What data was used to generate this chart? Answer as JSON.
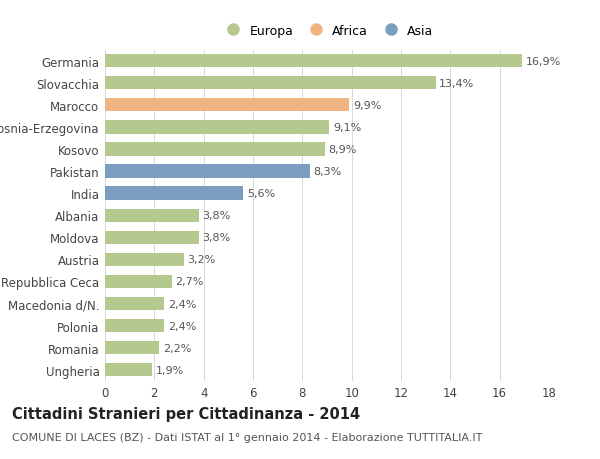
{
  "countries": [
    "Ungheria",
    "Romania",
    "Polonia",
    "Macedonia d/N.",
    "Repubblica Ceca",
    "Austria",
    "Moldova",
    "Albania",
    "India",
    "Pakistan",
    "Kosovo",
    "Bosnia-Erzegovina",
    "Marocco",
    "Slovacchia",
    "Germania"
  ],
  "values": [
    1.9,
    2.2,
    2.4,
    2.4,
    2.7,
    3.2,
    3.8,
    3.8,
    5.6,
    8.3,
    8.9,
    9.1,
    9.9,
    13.4,
    16.9
  ],
  "continents": [
    "Europa",
    "Europa",
    "Europa",
    "Europa",
    "Europa",
    "Europa",
    "Europa",
    "Europa",
    "Asia",
    "Asia",
    "Europa",
    "Europa",
    "Africa",
    "Europa",
    "Europa"
  ],
  "colors": {
    "Europa": "#b5c98e",
    "Africa": "#f0b482",
    "Asia": "#7b9ec0"
  },
  "legend_labels": [
    "Europa",
    "Africa",
    "Asia"
  ],
  "legend_colors": [
    "#b5c98e",
    "#f0b482",
    "#7b9ec0"
  ],
  "title": "Cittadini Stranieri per Cittadinanza - 2014",
  "subtitle": "COMUNE DI LACES (BZ) - Dati ISTAT al 1° gennaio 2014 - Elaborazione TUTTITALIA.IT",
  "xlim": [
    0,
    18
  ],
  "xticks": [
    0,
    2,
    4,
    6,
    8,
    10,
    12,
    14,
    16,
    18
  ],
  "background_color": "#ffffff",
  "grid_color": "#d8d8d8",
  "bar_height": 0.6,
  "value_label_fontsize": 8,
  "ytick_fontsize": 8.5,
  "xtick_fontsize": 8.5,
  "title_fontsize": 10.5,
  "subtitle_fontsize": 8,
  "legend_fontsize": 9
}
